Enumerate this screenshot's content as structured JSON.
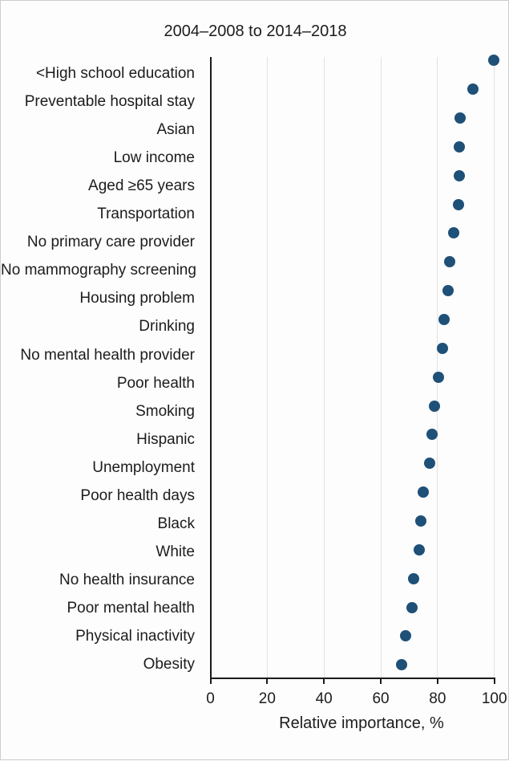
{
  "page": {
    "background": "#fdfdfd",
    "border_color": "#c9ced2",
    "text_color": "#1c1c1c"
  },
  "chart_data": {
    "type": "scatter",
    "subtype": "horizontal-dot-plot",
    "title": "2004–2008 to 2014–2018",
    "xlabel": "Relative importance, %",
    "ylabel": "",
    "xlim": [
      0,
      100
    ],
    "xticks": [
      "0",
      "20",
      "40",
      "60",
      "80",
      "100"
    ],
    "grid": "vertical-light-gray",
    "legend": "none",
    "dot_color": "#1f5077",
    "axis_color": "#1a1a1a",
    "gridline_color": "#e2e2e2",
    "categories": [
      "<High school education",
      "Preventable hospital stay",
      "Asian",
      "Low income",
      "Aged ≥65 years",
      "Transportation",
      "No primary care provider",
      "No mammography screening",
      "Housing problem",
      "Drinking",
      "No mental health provider",
      "Poor health",
      "Smoking",
      "Hispanic",
      "Unemployment",
      "Poor health days",
      "Black",
      "White",
      "No health insurance",
      "Poor mental health",
      "Physical inactivity",
      "Obesity"
    ],
    "values": [
      99.7,
      92.4,
      88.0,
      87.8,
      87.7,
      87.5,
      85.8,
      84.3,
      83.8,
      82.3,
      81.7,
      80.4,
      79.0,
      78.1,
      77.2,
      75.0,
      74.1,
      73.6,
      71.7,
      70.9,
      68.7,
      67.4
    ]
  }
}
